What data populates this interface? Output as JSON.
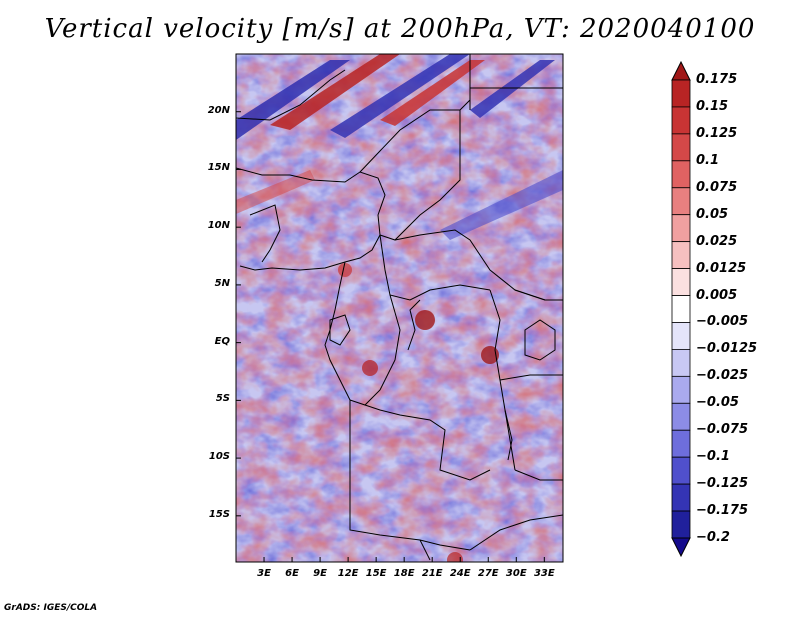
{
  "title": "Vertical velocity [m/s] at 200hPa, VT: 2020040100",
  "credit": "GrADS: IGES/COLA",
  "map": {
    "lon_range": [
      0,
      35
    ],
    "lat_range": [
      -19,
      25
    ],
    "y_ticks": [
      {
        "lat": 20,
        "label": "20N"
      },
      {
        "lat": 15,
        "label": "15N"
      },
      {
        "lat": 10,
        "label": "10N"
      },
      {
        "lat": 5,
        "label": "5N"
      },
      {
        "lat": 0,
        "label": "EQ"
      },
      {
        "lat": -5,
        "label": "5S"
      },
      {
        "lat": -10,
        "label": "10S"
      },
      {
        "lat": -15,
        "label": "15S"
      }
    ],
    "x_ticks": [
      {
        "lon": 3,
        "label": "3E"
      },
      {
        "lon": 6,
        "label": "6E"
      },
      {
        "lon": 9,
        "label": "9E"
      },
      {
        "lon": 12,
        "label": "12E"
      },
      {
        "lon": 15,
        "label": "15E"
      },
      {
        "lon": 18,
        "label": "18E"
      },
      {
        "lon": 21,
        "label": "21E"
      },
      {
        "lon": 24,
        "label": "24E"
      },
      {
        "lon": 27,
        "label": "27E"
      },
      {
        "lon": 30,
        "label": "30E"
      },
      {
        "lon": 33,
        "label": "33E"
      }
    ]
  },
  "colorbar": {
    "levels": [
      "0.175",
      "0.15",
      "0.125",
      "0.1",
      "0.075",
      "0.05",
      "0.025",
      "0.0125",
      "0.005",
      "−0.005",
      "−0.0125",
      "−0.025",
      "−0.05",
      "−0.075",
      "−0.1",
      "−0.125",
      "−0.175",
      "−0.2"
    ],
    "colors": [
      "#a01818",
      "#b82424",
      "#c83434",
      "#d44848",
      "#e06262",
      "#e88080",
      "#f0a0a0",
      "#f6c0c0",
      "#fbe0e0",
      "#ffffff",
      "#e4e4fa",
      "#c8c8f4",
      "#aaaaee",
      "#8c8ce6",
      "#6e6edc",
      "#5050cc",
      "#3434b4",
      "#20209c",
      "#140a8c"
    ]
  }
}
